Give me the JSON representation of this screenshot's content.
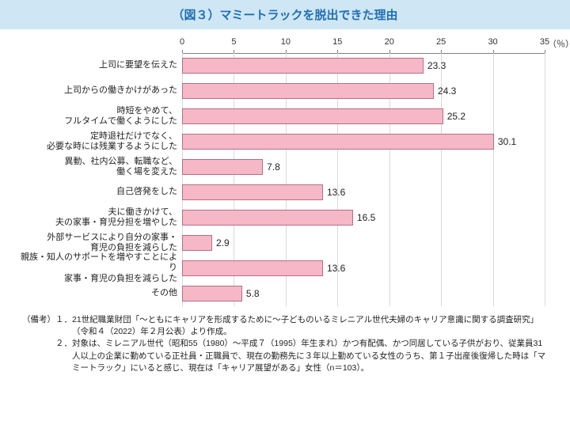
{
  "title": "（図３）マミートラックを脱出できた理由",
  "title_bg": "#cfe6f5",
  "title_fg": "#1f6fb2",
  "chart": {
    "type": "bar-horizontal",
    "xmin": 0,
    "xmax": 35,
    "xtick_step": 5,
    "ticks": [
      0,
      5,
      10,
      15,
      20,
      25,
      30,
      35
    ],
    "unit_label": "（％）",
    "bar_fill": "#f6b8c6",
    "bar_stroke": "#b66e86",
    "grid_color": "#d9d9d9",
    "axis_color": "#808080",
    "background": "#ffffff",
    "label_fontsize": 11,
    "value_fontsize": 12,
    "bars": [
      {
        "label": "上司に要望を伝えた",
        "value": 23.3
      },
      {
        "label": "上司からの働きかけがあった",
        "value": 24.3
      },
      {
        "label": "時短をやめて、\nフルタイムで働くようにした",
        "value": 25.2
      },
      {
        "label": "定時退社だけでなく、\n必要な時には残業するようにした",
        "value": 30.1
      },
      {
        "label": "異動、社内公募、転職など、\n働く場を変えた",
        "value": 7.8
      },
      {
        "label": "自己啓発をした",
        "value": 13.6
      },
      {
        "label": "夫に働きかけて、\n夫の家事・育児分担を増やした",
        "value": 16.5
      },
      {
        "label": "外部サービスにより自分の家事・\n育児の負担を減らした",
        "value": 2.9
      },
      {
        "label": "親族・知人のサポートを増やすことにより\n家事・育児の負担を減らした",
        "value": 13.6
      },
      {
        "label": "その他",
        "value": 5.8
      }
    ]
  },
  "notes": {
    "head": "（備考）",
    "items": [
      {
        "num": "１．",
        "text": "21世紀職業財団「～ともにキャリアを形成するために～子どものいるミレニアル世代夫婦のキャリア意識に関する調査研究」（令和４（2022）年２月公表）より作成。"
      },
      {
        "num": "２．",
        "text": "対象は、ミレニアル世代（昭和55（1980）～平成７（1995）年生まれ）かつ有配偶、かつ同居している子供がおり、従業員31人以上の企業に勤めている正社員・正職員で、現在の勤務先に３年以上勤めている女性のうち、第１子出産後復帰した時は「マミートラック」にいると感じ、現在は「キャリア展望がある」女性（n＝103）。"
      }
    ]
  }
}
